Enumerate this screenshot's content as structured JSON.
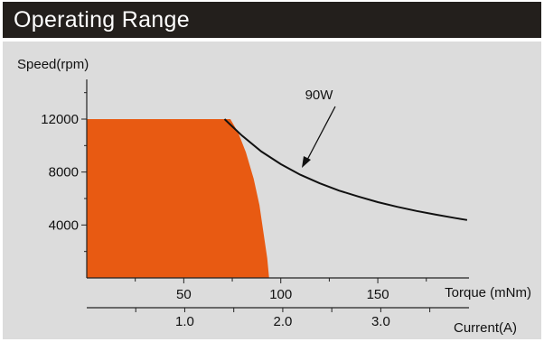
{
  "title": "Operating Range",
  "colors": {
    "title_bg": "#231f1c",
    "plot_bg": "#dcdcdc",
    "region_fill": "#e85a12",
    "curve": "#111111"
  },
  "chart_data": {
    "type": "area",
    "ylabel": "Speed(rpm)",
    "xlabel": "Torque (mNm)",
    "x2label": "Current(A)",
    "ylim": [
      0,
      15000
    ],
    "xlim": [
      0,
      197
    ],
    "x2lim": [
      0,
      3.9
    ],
    "yticks": [
      "12000",
      "8000",
      "4000"
    ],
    "xticks": [
      "50",
      "100",
      "150"
    ],
    "x2ticks": [
      "1.0",
      "2.0",
      "3.0"
    ],
    "grid": false,
    "operating_region": {
      "points": [
        [
          0,
          0
        ],
        [
          0,
          12000
        ],
        [
          74,
          12000
        ],
        [
          78,
          11000
        ],
        [
          82,
          9500
        ],
        [
          86,
          7500
        ],
        [
          89,
          5500
        ],
        [
          91,
          3500
        ],
        [
          93,
          1500
        ],
        [
          94,
          0
        ]
      ]
    },
    "series": [
      {
        "name": "90W",
        "points": [
          [
            71,
            12000
          ],
          [
            75,
            11450
          ],
          [
            80,
            10750
          ],
          [
            90,
            9550
          ],
          [
            100,
            8600
          ],
          [
            110,
            7800
          ],
          [
            120,
            7150
          ],
          [
            130,
            6600
          ],
          [
            140,
            6150
          ],
          [
            150,
            5730
          ],
          [
            160,
            5370
          ],
          [
            170,
            5060
          ],
          [
            180,
            4780
          ],
          [
            190,
            4520
          ],
          [
            196,
            4380
          ]
        ]
      }
    ]
  }
}
